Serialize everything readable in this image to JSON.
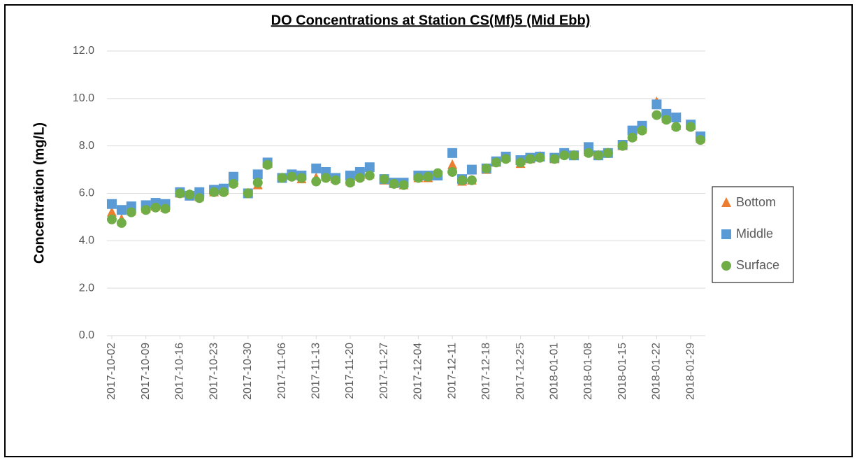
{
  "chart_data": {
    "type": "scatter",
    "title": "DO Concentrations at Station CS(Mf)5 (Mid Ebb)",
    "y_label": "Concentration (mg/L)",
    "x": [
      "2017-10-02",
      "2017-10-04",
      "2017-10-06",
      "2017-10-09",
      "2017-10-11",
      "2017-10-13",
      "2017-10-16",
      "2017-10-18",
      "2017-10-20",
      "2017-10-23",
      "2017-10-25",
      "2017-10-27",
      "2017-10-30",
      "2017-11-01",
      "2017-11-03",
      "2017-11-06",
      "2017-11-08",
      "2017-11-10",
      "2017-11-13",
      "2017-11-15",
      "2017-11-17",
      "2017-11-20",
      "2017-11-22",
      "2017-11-24",
      "2017-11-27",
      "2017-11-29",
      "2017-12-01",
      "2017-12-04",
      "2017-12-06",
      "2017-12-08",
      "2017-12-11",
      "2017-12-13",
      "2017-12-15",
      "2017-12-18",
      "2017-12-20",
      "2017-12-22",
      "2017-12-25",
      "2017-12-27",
      "2017-12-29",
      "2018-01-01",
      "2018-01-03",
      "2018-01-05",
      "2018-01-08",
      "2018-01-10",
      "2018-01-12",
      "2018-01-15",
      "2018-01-17",
      "2018-01-19",
      "2018-01-22",
      "2018-01-24",
      "2018-01-26",
      "2018-01-29",
      "2018-01-31"
    ],
    "series": [
      {
        "name": "Bottom",
        "color": "#ed7d31",
        "marker": "triangle",
        "values": [
          5.2,
          4.9,
          5.25,
          5.35,
          5.45,
          5.4,
          6.0,
          5.95,
          5.85,
          6.05,
          6.1,
          6.45,
          6.0,
          6.35,
          7.25,
          6.65,
          6.75,
          6.6,
          6.65,
          6.7,
          6.6,
          6.5,
          6.7,
          6.8,
          6.55,
          6.4,
          6.35,
          6.65,
          6.65,
          6.8,
          7.2,
          6.5,
          6.55,
          7.0,
          7.3,
          7.5,
          7.25,
          7.45,
          7.55,
          7.45,
          7.65,
          7.6,
          7.75,
          7.6,
          7.7,
          8.0,
          8.4,
          8.7,
          9.85,
          9.15,
          8.85,
          8.85,
          8.3
        ]
      },
      {
        "name": "Middle",
        "color": "#5b9bd5",
        "marker": "square",
        "values": [
          5.55,
          5.3,
          5.45,
          5.5,
          5.6,
          5.55,
          6.05,
          5.9,
          6.05,
          6.15,
          6.2,
          6.7,
          6.0,
          6.8,
          7.3,
          6.65,
          6.8,
          6.75,
          7.05,
          6.9,
          6.65,
          6.75,
          6.9,
          7.1,
          6.6,
          6.45,
          6.45,
          6.75,
          6.75,
          6.75,
          7.7,
          6.6,
          7.0,
          7.05,
          7.35,
          7.55,
          7.4,
          7.5,
          7.55,
          7.5,
          7.7,
          7.6,
          7.95,
          7.6,
          7.7,
          8.05,
          8.65,
          8.85,
          9.75,
          9.35,
          9.2,
          8.9,
          8.4
        ]
      },
      {
        "name": "Surface",
        "color": "#70ad47",
        "marker": "circle",
        "values": [
          4.9,
          4.75,
          5.2,
          5.3,
          5.4,
          5.35,
          6.0,
          5.95,
          5.8,
          6.05,
          6.05,
          6.4,
          6.0,
          6.45,
          7.2,
          6.65,
          6.7,
          6.65,
          6.5,
          6.65,
          6.55,
          6.45,
          6.65,
          6.75,
          6.6,
          6.4,
          6.35,
          6.65,
          6.7,
          6.85,
          6.9,
          6.55,
          6.55,
          7.05,
          7.3,
          7.45,
          7.3,
          7.45,
          7.5,
          7.45,
          7.6,
          7.6,
          7.7,
          7.6,
          7.7,
          8.0,
          8.35,
          8.65,
          9.3,
          9.1,
          8.8,
          8.8,
          8.25
        ]
      }
    ],
    "xlim": [
      "2017-10-01",
      "2018-02-01"
    ],
    "xticks": [
      "2017-10-02",
      "2017-10-09",
      "2017-10-16",
      "2017-10-23",
      "2017-10-30",
      "2017-11-06",
      "2017-11-13",
      "2017-11-20",
      "2017-11-27",
      "2017-12-04",
      "2017-12-11",
      "2017-12-18",
      "2017-12-25",
      "2018-01-01",
      "2018-01-08",
      "2018-01-15",
      "2018-01-22",
      "2018-01-29"
    ],
    "ylim": [
      0,
      12
    ],
    "yticks": [
      {
        "value": 0,
        "label": "0.0"
      },
      {
        "value": 2,
        "label": "2.0"
      },
      {
        "value": 4,
        "label": "4.0"
      },
      {
        "value": 6,
        "label": "6.0"
      },
      {
        "value": 8,
        "label": "8.0"
      },
      {
        "value": 10,
        "label": "10.0"
      },
      {
        "value": 12,
        "label": "12.0"
      }
    ],
    "grid": true,
    "legend": "right"
  }
}
